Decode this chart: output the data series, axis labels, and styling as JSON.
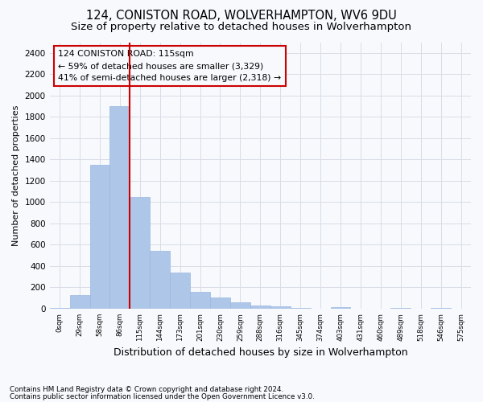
{
  "title1": "124, CONISTON ROAD, WOLVERHAMPTON, WV6 9DU",
  "title2": "Size of property relative to detached houses in Wolverhampton",
  "xlabel": "Distribution of detached houses by size in Wolverhampton",
  "ylabel": "Number of detached properties",
  "bar_values": [
    10,
    130,
    1350,
    1900,
    1050,
    545,
    340,
    155,
    105,
    60,
    30,
    20,
    10,
    0,
    15,
    0,
    0,
    5,
    0,
    5,
    0
  ],
  "x_labels": [
    "0sqm",
    "29sqm",
    "58sqm",
    "86sqm",
    "115sqm",
    "144sqm",
    "173sqm",
    "201sqm",
    "230sqm",
    "259sqm",
    "288sqm",
    "316sqm",
    "345sqm",
    "374sqm",
    "403sqm",
    "431sqm",
    "460sqm",
    "489sqm",
    "518sqm",
    "546sqm",
    "575sqm"
  ],
  "bar_color": "#aec6e8",
  "bar_edgecolor": "#9ab8e0",
  "vline_x": 4,
  "vline_color": "#cc0000",
  "annotation_line1": "124 CONISTON ROAD: 115sqm",
  "annotation_line2": "← 59% of detached houses are smaller (3,329)",
  "annotation_line3": "41% of semi-detached houses are larger (2,318) →",
  "annotation_box_edgecolor": "#cc0000",
  "ylim": [
    0,
    2500
  ],
  "yticks": [
    0,
    200,
    400,
    600,
    800,
    1000,
    1200,
    1400,
    1600,
    1800,
    2000,
    2200,
    2400
  ],
  "footer1": "Contains HM Land Registry data © Crown copyright and database right 2024.",
  "footer2": "Contains public sector information licensed under the Open Government Licence v3.0.",
  "bg_color": "#f7f9fc",
  "grid_color": "#d8dde8",
  "title1_fontsize": 10.5,
  "title2_fontsize": 9.5,
  "ylabel_fontsize": 8,
  "xlabel_fontsize": 9
}
